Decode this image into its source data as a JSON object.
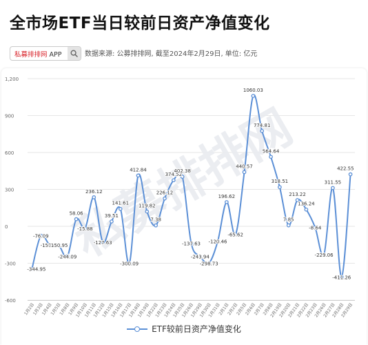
{
  "header": {
    "title": "全市场ETF当日较前日资产净值变化",
    "search_brand": "私募排排网",
    "search_app": "APP",
    "source": "数据来源: 公募排排网, 截至2024年2月29日, 单位: 亿元"
  },
  "watermark": "私募排排网",
  "colors": {
    "series": "#5b8fd6",
    "grid": "#e6e6e6",
    "title": "#111111"
  },
  "icons": {
    "search": "search-icon"
  },
  "chart_data": {
    "type": "line",
    "smooth": true,
    "ylim": [
      -600,
      1200
    ],
    "yticks": [
      "-600",
      "-300",
      "0",
      "300",
      "600",
      "900",
      "1,200"
    ],
    "ytick_values": [
      -600,
      -300,
      0,
      300,
      600,
      900,
      1200
    ],
    "grid": true,
    "legend": "bottom-center",
    "x": [
      "1月2日",
      "1月3日",
      "1月4日",
      "1月5日",
      "1月8日",
      "1月9日",
      "1月10日",
      "1月11日",
      "1月12日",
      "1月15日",
      "1月16日",
      "1月17日",
      "1月18日",
      "1月19日",
      "1月22日",
      "1月23日",
      "1月24日",
      "1月25日",
      "1月26日",
      "1月29日",
      "1月30日",
      "1月31日",
      "2月1日",
      "2月2日",
      "2月5日",
      "2月6日",
      "2月7日",
      "2月8日",
      "2月19日",
      "2月20日",
      "2月21日",
      "2月22日",
      "2月23日",
      "2月26日",
      "2月27日",
      "2月28日",
      "2月29日"
    ],
    "series": [
      {
        "name": "ETF较前日资产净值变化",
        "values": [
          -344.95,
          -76.09,
          -150.45,
          -150.95,
          -244.09,
          58.06,
          -15.88,
          236.12,
          -127.63,
          39.51,
          141.61,
          -300.09,
          412.84,
          119.82,
          7.38,
          226.12,
          374.52,
          402.38,
          -137.63,
          -243.94,
          -298.73,
          -120.46,
          196.62,
          -65.62,
          440.57,
          1060.03,
          774.81,
          564.64,
          318.51,
          7.85,
          213.22,
          136.24,
          -8.64,
          -229.06,
          311.55,
          -411.26,
          422.55
        ],
        "labels": [
          "-344.95",
          "-76.09",
          "-150.45",
          "-150.95",
          "-244.09",
          "58.06",
          "-15.88",
          "236.12",
          "-127.63",
          "39.51",
          "141.61",
          "-300.09",
          "412.84",
          "119.82",
          "7.38",
          "226.12",
          "374.52",
          "402.38",
          "-137.63",
          "-243.94",
          "-298.73",
          "-120.46",
          "196.62",
          "-65.62",
          "440.57",
          "1060.03",
          "774.81",
          "564.64",
          "318.51",
          "7.85",
          "213.22",
          "136.24",
          "-8.64",
          "-229.06",
          "311.55",
          "-411.26",
          "422.55"
        ]
      }
    ]
  }
}
